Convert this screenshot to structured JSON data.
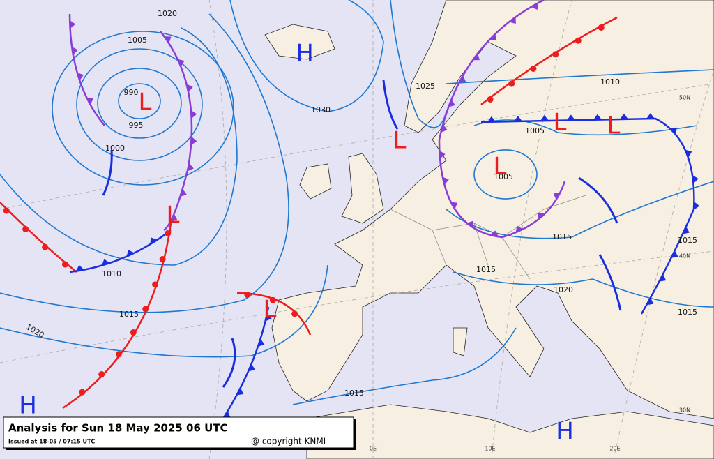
{
  "caption": {
    "title": "Analysis for Sun 18 May 2025 06 UTC",
    "issued": "Issued at 18-05 / 07:15 UTC",
    "copyright": "@ copyright KNMI"
  },
  "pressure_centers": [
    "H",
    "L",
    "L",
    "L",
    "L",
    "L",
    "L",
    "L",
    "H",
    "H"
  ],
  "isobar_labels": [
    "1020",
    "1005",
    "990",
    "995",
    "1000",
    "1030",
    "1025",
    "1010",
    "1005",
    "1005",
    "1015",
    "1015",
    "1015",
    "1020",
    "1015",
    "1010",
    "1015",
    "1020",
    "1015"
  ],
  "grid_labels": [
    "50N",
    "40N",
    "30N",
    "0E",
    "10E",
    "20E"
  ]
}
